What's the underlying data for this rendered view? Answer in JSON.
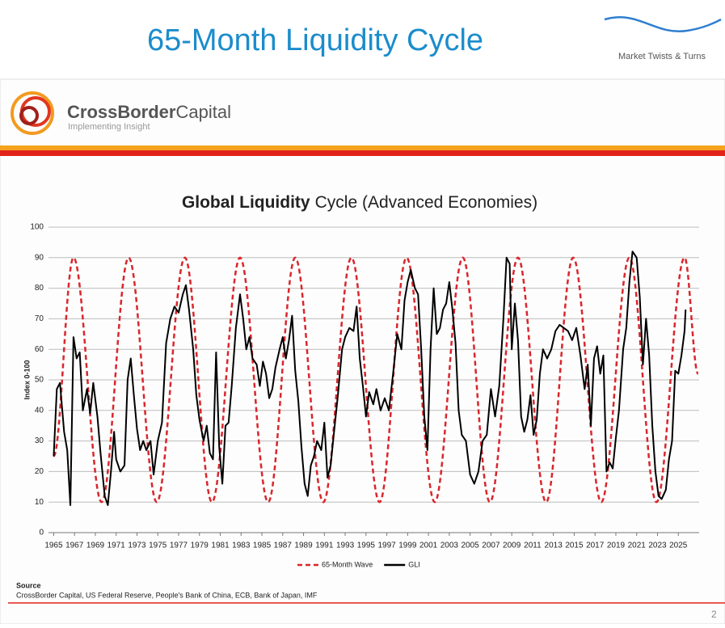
{
  "header": {
    "title": "65-Month Liquidity Cycle",
    "brand": "Market Twists & Turns"
  },
  "logo": {
    "name_bold": "CrossBorder",
    "name_regular": "Capital",
    "tagline": "Implementing Insight"
  },
  "chart_data": {
    "type": "line",
    "title_bold": "Global Liquidity",
    "title_regular": "Cycle (Advanced Economies)",
    "ylabel": "Index 0-100",
    "xlim": [
      1964.5,
      2027
    ],
    "xticks": [
      1965,
      1967,
      1969,
      1971,
      1973,
      1975,
      1977,
      1979,
      1981,
      1983,
      1985,
      1987,
      1989,
      1991,
      1993,
      1995,
      1997,
      1999,
      2001,
      2003,
      2005,
      2007,
      2009,
      2011,
      2013,
      2015,
      2017,
      2019,
      2021,
      2023,
      2025
    ],
    "ylim": [
      0,
      100
    ],
    "yticks": [
      0,
      10,
      20,
      30,
      40,
      50,
      60,
      70,
      80,
      90,
      100
    ],
    "grid": true,
    "legend": "bottom",
    "series": [
      {
        "name": "65-Month Wave",
        "color": "#d9262c",
        "style": "dashed",
        "smooth": true,
        "x": [
          1965,
          1966.9,
          1969.6,
          1972.2,
          1974.9,
          1977.6,
          1980.2,
          1982.9,
          1985.6,
          1988.2,
          1990.9,
          1993.6,
          1996.3,
          1998.9,
          2001.6,
          2004.3,
          2006.9,
          2009.6,
          2012.3,
          2014.9,
          2017.6,
          2020.3,
          2022.9,
          2025.6,
          2026.9
        ],
        "values": [
          25,
          90,
          10,
          90,
          10,
          90,
          10,
          90,
          10,
          90,
          10,
          90,
          10,
          90,
          10,
          90,
          10,
          90,
          10,
          90,
          10,
          90,
          10,
          90,
          52
        ]
      },
      {
        "name": "GLI",
        "color": "#000000",
        "style": "solid",
        "smooth": false,
        "x": [
          1965,
          1965.3,
          1965.6,
          1966,
          1966.3,
          1966.6,
          1966.9,
          1967.2,
          1967.5,
          1967.8,
          1968.2,
          1968.5,
          1968.8,
          1969.2,
          1969.5,
          1969.9,
          1970.2,
          1970.5,
          1970.8,
          1971,
          1971.4,
          1971.8,
          1972.1,
          1972.4,
          1972.7,
          1973,
          1973.3,
          1973.6,
          1973.9,
          1974.3,
          1974.6,
          1975,
          1975.4,
          1975.8,
          1976.2,
          1976.6,
          1977,
          1977.4,
          1977.7,
          1978,
          1978.4,
          1978.7,
          1979,
          1979.4,
          1979.7,
          1980,
          1980.3,
          1980.6,
          1980.9,
          1981.2,
          1981.5,
          1981.8,
          1982.1,
          1982.5,
          1982.9,
          1983.2,
          1983.5,
          1983.8,
          1984.1,
          1984.5,
          1984.8,
          1985.1,
          1985.4,
          1985.7,
          1986,
          1986.3,
          1986.7,
          1987,
          1987.3,
          1987.6,
          1987.9,
          1988.2,
          1988.5,
          1988.8,
          1989.1,
          1989.4,
          1989.7,
          1990,
          1990.3,
          1990.7,
          1991,
          1991.3,
          1991.6,
          1991.9,
          1992.3,
          1992.7,
          1993,
          1993.4,
          1993.8,
          1994.1,
          1994.4,
          1994.7,
          1995,
          1995.3,
          1995.7,
          1996,
          1996.4,
          1996.8,
          1997.2,
          1997.6,
          1998,
          1998.4,
          1998.7,
          1999,
          1999.3,
          1999.7,
          2000,
          2000.3,
          2000.6,
          2000.9,
          2001.2,
          2001.5,
          2001.8,
          2002.1,
          2002.4,
          2002.7,
          2003,
          2003.3,
          2003.6,
          2003.9,
          2004.2,
          2004.6,
          2005,
          2005.4,
          2005.8,
          2006.2,
          2006.6,
          2007,
          2007.4,
          2007.8,
          2008.2,
          2008.5,
          2008.8,
          2009,
          2009.3,
          2009.6,
          2009.9,
          2010.2,
          2010.5,
          2010.8,
          2011.1,
          2011.4,
          2011.7,
          2012,
          2012.4,
          2012.8,
          2013.2,
          2013.6,
          2014,
          2014.4,
          2014.8,
          2015.2,
          2015.6,
          2016,
          2016.3,
          2016.6,
          2016.9,
          2017.2,
          2017.5,
          2017.8,
          2018.1,
          2018.4,
          2018.7,
          2019,
          2019.3,
          2019.7,
          2020,
          2020.3,
          2020.6,
          2021,
          2021.3,
          2021.6,
          2021.9,
          2022.2,
          2022.5,
          2022.8,
          2023.1,
          2023.4,
          2023.8,
          2024.1,
          2024.4,
          2024.7,
          2025,
          2025.3,
          2025.6,
          2025.7
        ],
        "values": [
          25,
          47,
          49,
          33,
          27,
          9,
          64,
          57,
          59,
          40,
          47,
          39,
          49,
          38,
          26,
          12,
          9,
          20,
          33,
          24,
          20,
          22,
          50,
          57,
          45,
          34,
          27,
          30,
          27,
          30,
          19,
          30,
          36,
          62,
          70,
          74,
          72,
          78,
          81,
          73,
          60,
          45,
          37,
          30,
          35,
          26,
          24,
          59,
          28,
          16,
          35,
          36,
          48,
          67,
          78,
          70,
          60,
          64,
          57,
          55,
          48,
          56,
          52,
          44,
          47,
          54,
          60,
          64,
          57,
          63,
          71,
          53,
          43,
          28,
          16,
          12,
          22,
          25,
          30,
          27,
          36,
          18,
          22,
          32,
          45,
          60,
          64,
          67,
          66,
          74,
          57,
          48,
          38,
          46,
          42,
          47,
          40,
          44,
          40,
          52,
          65,
          60,
          76,
          82,
          86,
          80,
          78,
          60,
          38,
          27,
          60,
          80,
          65,
          67,
          73,
          75,
          82,
          73,
          62,
          40,
          32,
          30,
          19,
          16,
          20,
          30,
          32,
          47,
          38,
          48,
          70,
          90,
          88,
          60,
          75,
          63,
          38,
          33,
          37,
          45,
          32,
          37,
          52,
          60,
          57,
          60,
          66,
          68,
          67,
          66,
          63,
          67,
          58,
          47,
          55,
          35,
          57,
          61,
          52,
          58,
          20,
          23,
          21,
          31,
          40,
          60,
          67,
          82,
          92,
          90,
          77,
          55,
          70,
          58,
          35,
          20,
          12,
          11,
          14,
          24,
          30,
          53,
          52,
          58,
          66,
          73
        ]
      }
    ],
    "source_title": "Source",
    "source": "CrossBorder Capital, US Federal Reserve, People's Bank of China, ECB, Bank of Japan, IMF",
    "page_number": "2"
  }
}
